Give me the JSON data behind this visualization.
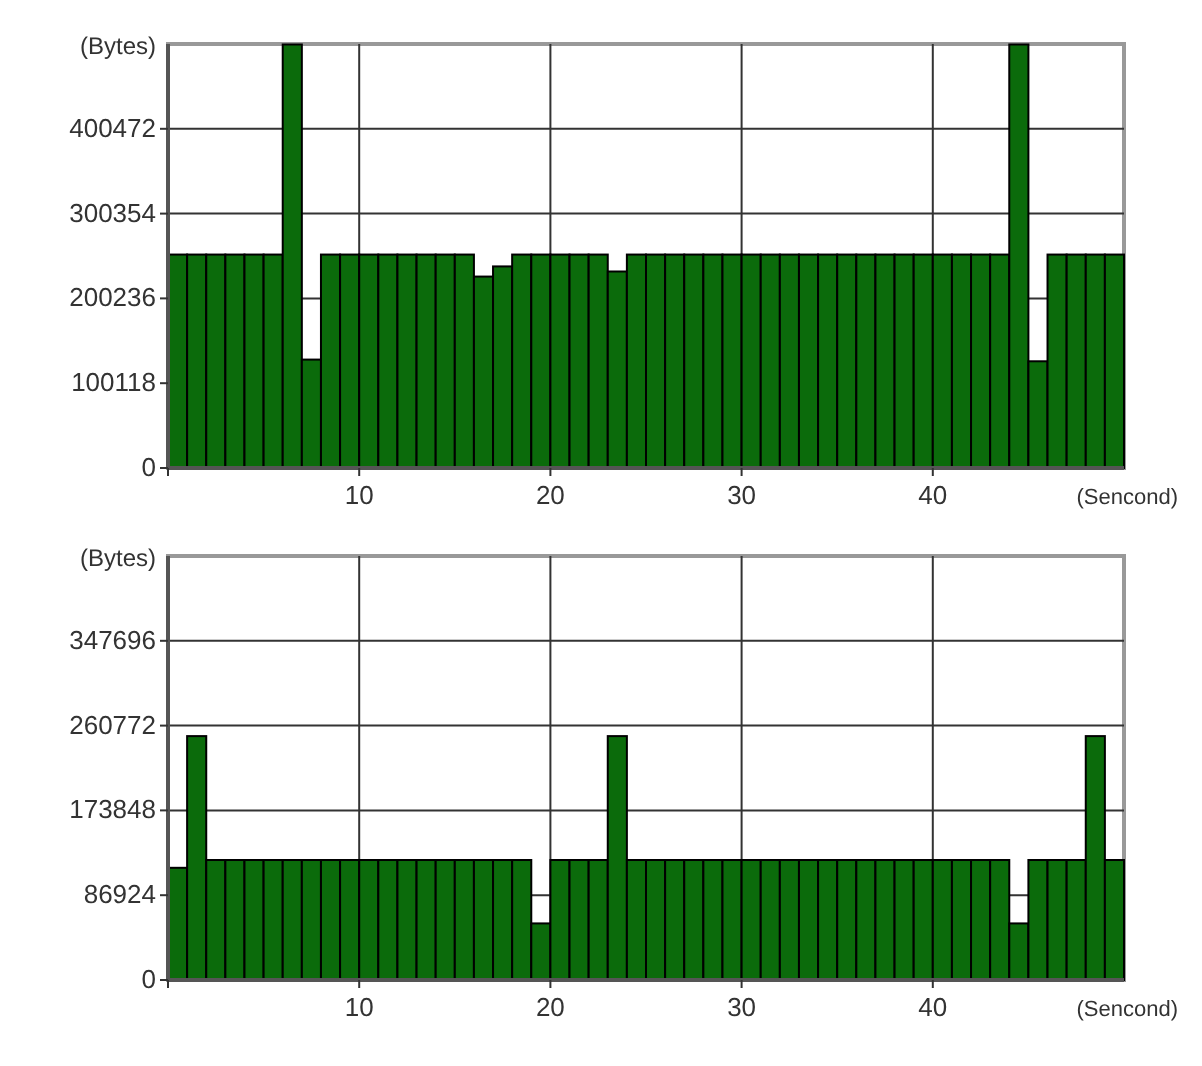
{
  "chart_data": [
    {
      "type": "bar",
      "xlabel": "(Sencond)",
      "ylabel": "(Bytes)",
      "x": [
        0.5,
        1.5,
        2.5,
        3.5,
        4.5,
        5.5,
        6.5,
        7.5,
        8.5,
        9.5,
        10.5,
        11.5,
        12.5,
        13.5,
        14.5,
        15.5,
        16.5,
        17.5,
        18.5,
        19.5,
        20.5,
        21.5,
        22.5,
        23.5,
        24.5,
        25.5,
        26.5,
        27.5,
        28.5,
        29.5,
        30.5,
        31.5,
        32.5,
        33.5,
        34.5,
        35.5,
        36.5,
        37.5,
        38.5,
        39.5,
        40.5,
        41.5,
        42.5,
        43.5,
        44.5,
        45.5,
        46.5,
        47.5,
        48.5,
        49.5
      ],
      "values": [
        252000,
        252000,
        252000,
        252000,
        252000,
        252000,
        500000,
        128000,
        252000,
        252000,
        252000,
        252000,
        252000,
        252000,
        252000,
        252000,
        226000,
        238000,
        252000,
        252000,
        252000,
        252000,
        252000,
        232000,
        252000,
        252000,
        252000,
        252000,
        252000,
        252000,
        252000,
        252000,
        252000,
        252000,
        252000,
        252000,
        252000,
        252000,
        252000,
        252000,
        252000,
        252000,
        252000,
        252000,
        500000,
        126000,
        252000,
        252000,
        252000,
        252000
      ],
      "color": "#0b6b0b",
      "xlim": [
        0,
        50
      ],
      "xticks": [
        {
          "value": 0,
          "label": null
        },
        10,
        20,
        30,
        40
      ],
      "ylim": [
        0,
        500590
      ],
      "yticks": [
        0,
        100118,
        200236,
        300354,
        400472
      ],
      "grid": true
    },
    {
      "type": "bar",
      "xlabel": "(Sencond)",
      "ylabel": "(Bytes)",
      "x": [
        0.5,
        1.5,
        2.5,
        3.5,
        4.5,
        5.5,
        6.5,
        7.5,
        8.5,
        9.5,
        10.5,
        11.5,
        12.5,
        13.5,
        14.5,
        15.5,
        16.5,
        17.5,
        18.5,
        19.5,
        20.5,
        21.5,
        22.5,
        23.5,
        24.5,
        25.5,
        26.5,
        27.5,
        28.5,
        29.5,
        30.5,
        31.5,
        32.5,
        33.5,
        34.5,
        35.5,
        36.5,
        37.5,
        38.5,
        39.5,
        40.5,
        41.5,
        42.5,
        43.5,
        44.5,
        45.5,
        46.5,
        47.5,
        48.5,
        49.5
      ],
      "values": [
        115000,
        250000,
        123000,
        123000,
        123000,
        123000,
        123000,
        123000,
        123000,
        123000,
        123000,
        123000,
        123000,
        123000,
        123000,
        123000,
        123000,
        123000,
        123000,
        58000,
        123000,
        123000,
        123000,
        250000,
        123000,
        123000,
        123000,
        123000,
        123000,
        123000,
        123000,
        123000,
        123000,
        123000,
        123000,
        123000,
        123000,
        123000,
        123000,
        123000,
        123000,
        123000,
        123000,
        123000,
        58000,
        123000,
        123000,
        123000,
        250000,
        123000
      ],
      "color": "#0b6b0b",
      "xlim": [
        0,
        50
      ],
      "xticks": [
        {
          "value": 0,
          "label": null
        },
        10,
        20,
        30,
        40
      ],
      "ylim": [
        0,
        434620
      ],
      "yticks": [
        0,
        86924,
        173848,
        260772,
        347696
      ],
      "grid": true
    }
  ]
}
